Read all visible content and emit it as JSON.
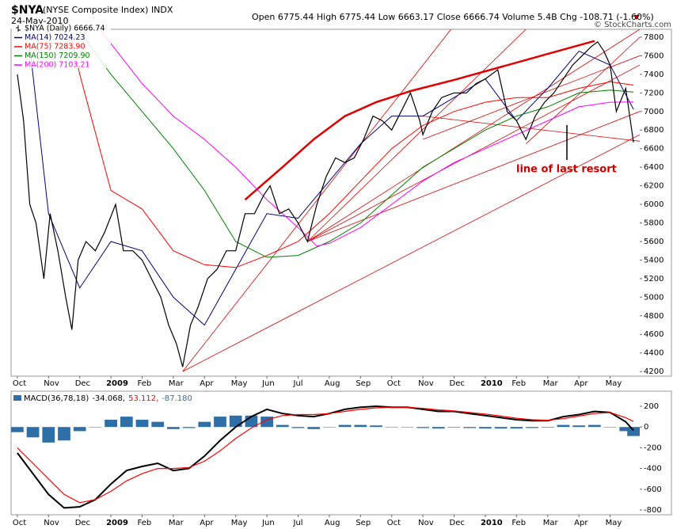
{
  "chart_data": [
    {
      "type": "line",
      "title": "$NYA",
      "subtitle": "(NYSE Composite Index) INDX",
      "date": "24-May-2010",
      "quote": "Open 6775.44 High 6775.44 Low 6663.17 Close 6666.74 Volume 5.4B Chg -108.71 (-1.60%)",
      "credit": "© StockCharts.com",
      "annotation": "line of last resort",
      "xlim": [
        -0.2,
        19.95
      ],
      "ylim": [
        4150,
        7885
      ],
      "xticks": [
        {
          "value": 0,
          "label": "Oct"
        },
        {
          "value": 1,
          "label": "Nov"
        },
        {
          "value": 2,
          "label": "Dec"
        },
        {
          "value": 3,
          "label": "2009"
        },
        {
          "value": 4,
          "label": "Feb"
        },
        {
          "value": 5,
          "label": "Mar"
        },
        {
          "value": 6,
          "label": "Apr"
        },
        {
          "value": 7,
          "label": "May"
        },
        {
          "value": 8,
          "label": "Jun"
        },
        {
          "value": 9,
          "label": "Jul"
        },
        {
          "value": 10,
          "label": "Aug"
        },
        {
          "value": 11,
          "label": "Sep"
        },
        {
          "value": 12,
          "label": "Oct"
        },
        {
          "value": 13,
          "label": "Nov"
        },
        {
          "value": 14,
          "label": "Dec"
        },
        {
          "value": 15,
          "label": "2010"
        },
        {
          "value": 16,
          "label": "Feb"
        },
        {
          "value": 17,
          "label": "Mar"
        },
        {
          "value": 18,
          "label": "Apr"
        },
        {
          "value": 19,
          "label": "May"
        }
      ],
      "yticks": [
        4200,
        4400,
        4600,
        4800,
        5000,
        5200,
        5400,
        5600,
        5800,
        6000,
        6200,
        6400,
        6600,
        6800,
        7000,
        7200,
        7400,
        7600,
        7800
      ],
      "series": [
        {
          "name": "$NYA (Daily) 6666.74",
          "color": "#000000",
          "x": [
            0,
            0.2,
            0.4,
            0.6,
            0.85,
            1.05,
            1.3,
            1.55,
            1.75,
            1.95,
            2.2,
            2.5,
            2.8,
            3.15,
            3.4,
            3.7,
            4.0,
            4.3,
            4.6,
            4.85,
            5.1,
            5.3,
            5.55,
            5.8,
            6.1,
            6.4,
            6.7,
            7.0,
            7.3,
            7.6,
            7.9,
            8.1,
            8.4,
            8.7,
            9.0,
            9.3,
            9.6,
            9.9,
            10.2,
            10.5,
            10.8,
            11.1,
            11.4,
            11.7,
            12.0,
            12.3,
            12.6,
            12.9,
            13.0,
            13.3,
            13.6,
            14.0,
            14.4,
            14.7,
            15.0,
            15.4,
            15.7,
            16.0,
            16.3,
            16.6,
            16.9,
            17.2,
            17.5,
            17.8,
            18.1,
            18.4,
            18.6,
            18.8,
            19.0,
            19.2,
            19.5,
            19.75
          ],
          "values": [
            7400,
            6900,
            6000,
            5800,
            5200,
            5900,
            5500,
            5000,
            4650,
            5400,
            5600,
            5500,
            5700,
            6000,
            5500,
            5500,
            5400,
            5200,
            5000,
            4700,
            4500,
            4250,
            4700,
            4900,
            5200,
            5300,
            5500,
            5500,
            5900,
            5900,
            6100,
            6200,
            5900,
            5950,
            5800,
            5600,
            6000,
            6300,
            6500,
            6450,
            6500,
            6700,
            6950,
            6900,
            6800,
            7000,
            7200,
            6900,
            6750,
            7000,
            7150,
            7200,
            7200,
            7300,
            7350,
            7450,
            7000,
            6900,
            6700,
            6950,
            7100,
            7200,
            7350,
            7500,
            7600,
            7700,
            7750,
            7650,
            7500,
            7000,
            7250,
            6667
          ]
        },
        {
          "name": "MA(14) 7024.23",
          "color": "#000080",
          "x": [
            0.4,
            1,
            2,
            3,
            4,
            5,
            6,
            7,
            8,
            9,
            10,
            11,
            12,
            13,
            14,
            15,
            16,
            17,
            18,
            19,
            19.75
          ],
          "values": [
            7700,
            5900,
            5100,
            5600,
            5500,
            5000,
            4700,
            5300,
            5900,
            5850,
            6250,
            6650,
            6950,
            6950,
            7150,
            7350,
            6900,
            7250,
            7650,
            7500,
            7024
          ]
        },
        {
          "name": "MA(75) 7283.90",
          "color": "#ff0000",
          "x": [
            1.7,
            2,
            3,
            4,
            5,
            6,
            7,
            8,
            9,
            10,
            11,
            12,
            13,
            14,
            15,
            16,
            17,
            18,
            19,
            19.75
          ],
          "values": [
            7850,
            7400,
            6150,
            5950,
            5500,
            5350,
            5320,
            5450,
            5600,
            5900,
            6250,
            6600,
            6850,
            7000,
            7100,
            7150,
            7150,
            7250,
            7320,
            7284
          ]
        },
        {
          "name": "MA(150) 7209.90",
          "color": "#008000",
          "x": [
            2,
            3,
            4,
            5,
            6,
            7,
            8,
            9,
            10,
            11,
            12,
            13,
            14,
            15,
            16,
            17,
            18,
            19,
            19.75
          ],
          "values": [
            7860,
            7400,
            7000,
            6600,
            6150,
            5600,
            5430,
            5450,
            5600,
            5800,
            6100,
            6400,
            6600,
            6800,
            6950,
            7050,
            7200,
            7230,
            7210
          ]
        },
        {
          "name": "MA(200) 7103.21",
          "color": "#ff00ff",
          "x": [
            2.7,
            4,
            5,
            6,
            7,
            8,
            9,
            9.6,
            10,
            11,
            12,
            13,
            14,
            15,
            16,
            17,
            18,
            19,
            19.75
          ],
          "values": [
            7860,
            7300,
            6950,
            6700,
            6400,
            6050,
            5750,
            5550,
            5580,
            5750,
            6000,
            6250,
            6450,
            6600,
            6750,
            6900,
            7050,
            7100,
            7103
          ]
        }
      ],
      "trend_color": "#e00000",
      "lines": [
        {
          "x": [
            5.3,
            13.9
          ],
          "values": [
            4200,
            7885
          ]
        },
        {
          "x": [
            5.3,
            19.95
          ],
          "values": [
            4200,
            6750
          ]
        },
        {
          "x": [
            9.3,
            19.95
          ],
          "values": [
            5600,
            7885
          ]
        },
        {
          "x": [
            9.3,
            19.95
          ],
          "values": [
            5600,
            7500
          ]
        },
        {
          "x": [
            9.3,
            19.95
          ],
          "values": [
            5600,
            7000
          ]
        },
        {
          "x": [
            9.3,
            16.3
          ],
          "values": [
            5600,
            7885
          ]
        },
        {
          "x": [
            16.3,
            19.95
          ],
          "values": [
            6650,
            7800
          ]
        },
        {
          "x": [
            13,
            19.95
          ],
          "values": [
            6700,
            7600
          ]
        },
        {
          "x": [
            13,
            19.95
          ],
          "values": [
            6950,
            6680
          ]
        }
      ],
      "arc": {
        "x": [
          7.3,
          8.5,
          9.5,
          10.5,
          11.5,
          12.6,
          14,
          15.5,
          17,
          18.5
        ],
        "values": [
          6050,
          6400,
          6700,
          6950,
          7100,
          7220,
          7340,
          7480,
          7620,
          7760
        ]
      }
    },
    {
      "type": "macd",
      "title": "MACD(36,78,18)",
      "xlim": [
        -0.2,
        19.95
      ],
      "ylim": [
        -846,
        345
      ],
      "xticks": [
        {
          "value": 0,
          "label": "Oct"
        },
        {
          "value": 1,
          "label": "Nov"
        },
        {
          "value": 2,
          "label": "Dec"
        },
        {
          "value": 3,
          "label": "2009"
        },
        {
          "value": 4,
          "label": "Feb"
        },
        {
          "value": 5,
          "label": "Mar"
        },
        {
          "value": 6,
          "label": "Apr"
        },
        {
          "value": 7,
          "label": "May"
        },
        {
          "value": 8,
          "label": "Jun"
        },
        {
          "value": 9,
          "label": "Jul"
        },
        {
          "value": 10,
          "label": "Aug"
        },
        {
          "value": 11,
          "label": "Sep"
        },
        {
          "value": 12,
          "label": "Oct"
        },
        {
          "value": 13,
          "label": "Nov"
        },
        {
          "value": 14,
          "label": "Dec"
        },
        {
          "value": 15,
          "label": "2010"
        },
        {
          "value": 16,
          "label": "Feb"
        },
        {
          "value": 17,
          "label": "Mar"
        },
        {
          "value": 18,
          "label": "Apr"
        },
        {
          "value": 19,
          "label": "May"
        }
      ],
      "yticks": [
        200,
        0,
        -200,
        -400,
        -600,
        -800
      ],
      "x": [
        0,
        0.5,
        1,
        1.5,
        2,
        2.5,
        3,
        3.5,
        4,
        4.5,
        5,
        5.5,
        6,
        6.5,
        7,
        7.5,
        8,
        8.5,
        9,
        9.5,
        10,
        10.5,
        11,
        11.5,
        12,
        12.5,
        13,
        13.5,
        14,
        14.5,
        15,
        15.5,
        16,
        16.5,
        17,
        17.5,
        18,
        18.5,
        19,
        19.5,
        19.75
      ],
      "series": [
        {
          "name": "-34.068,",
          "color": "#000000",
          "kind": "line",
          "values": [
            -250,
            -450,
            -650,
            -780,
            -770,
            -700,
            -550,
            -420,
            -380,
            -350,
            -420,
            -400,
            -280,
            -130,
            0,
            100,
            170,
            130,
            110,
            100,
            130,
            170,
            190,
            200,
            190,
            190,
            170,
            150,
            150,
            130,
            110,
            90,
            70,
            60,
            60,
            100,
            120,
            150,
            140,
            50,
            -34
          ]
        },
        {
          "name": "53.112,",
          "color": "#ff0000",
          "kind": "line",
          "values": [
            -200,
            -350,
            -500,
            -650,
            -730,
            -700,
            -620,
            -520,
            -450,
            -400,
            -400,
            -390,
            -330,
            -230,
            -110,
            -10,
            70,
            110,
            120,
            120,
            130,
            150,
            170,
            185,
            190,
            190,
            180,
            165,
            155,
            140,
            125,
            105,
            85,
            70,
            65,
            80,
            105,
            130,
            140,
            90,
            53
          ]
        },
        {
          "name": "-87.180",
          "color": "#2f6fa8",
          "kind": "histogram",
          "values": [
            -50,
            -100,
            -150,
            -130,
            -40,
            0,
            70,
            100,
            70,
            50,
            -20,
            -10,
            50,
            100,
            110,
            110,
            100,
            20,
            -10,
            -20,
            0,
            20,
            20,
            15,
            0,
            0,
            -10,
            -15,
            -5,
            -10,
            -15,
            -15,
            -15,
            -10,
            -5,
            20,
            15,
            20,
            0,
            -40,
            -87
          ]
        }
      ]
    }
  ]
}
